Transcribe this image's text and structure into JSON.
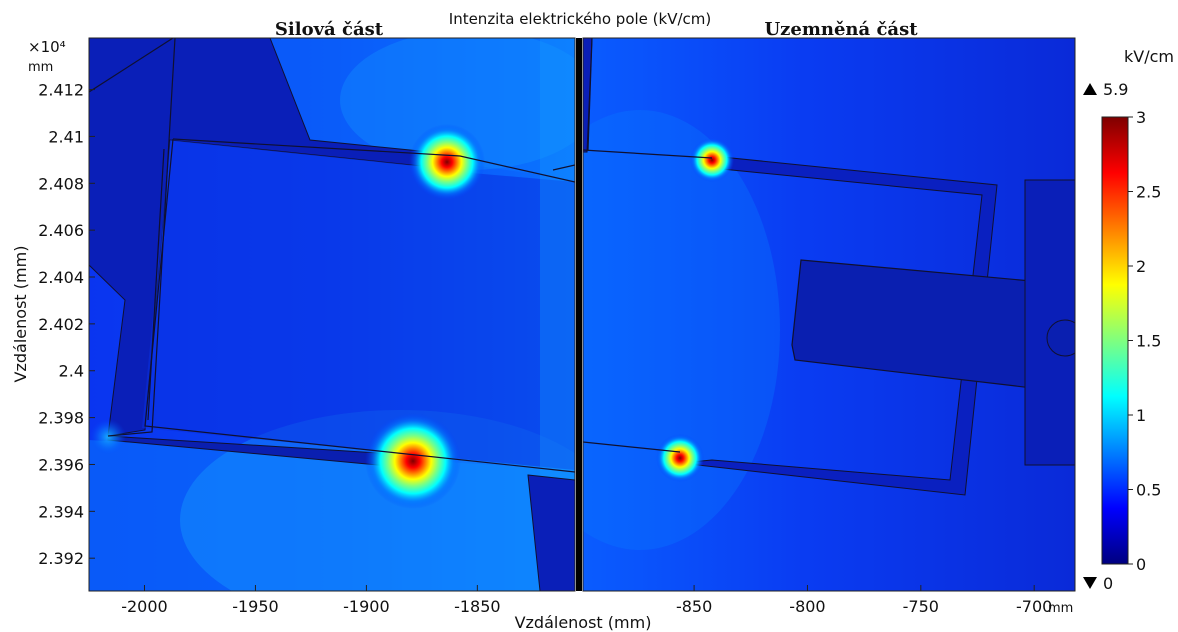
{
  "chart_data": {
    "type": "heatmap",
    "title": "Intenzita elektrického pole (kV/cm)",
    "xlabel": "Vzdálenost (mm)",
    "ylabel": "Vzdálenost (mm)",
    "x_unit": "mm",
    "y_unit": "mm",
    "y_multiplier": "×10⁴",
    "panels": [
      {
        "name": "Silová část",
        "xlim": [
          -2025,
          -1806
        ],
        "x_ticks": [
          -2000,
          -1950,
          -1900,
          -1850
        ]
      },
      {
        "name": "Uzemněná část",
        "xlim": [
          -899,
          -682
        ],
        "x_ticks": [
          -850,
          -800,
          -750,
          -700
        ]
      }
    ],
    "ylim": [
      2.3906,
      2.4142
    ],
    "y_ticks": [
      2.392,
      2.394,
      2.396,
      2.398,
      2.4,
      2.402,
      2.404,
      2.406,
      2.408,
      2.41,
      2.412
    ],
    "y_tick_labels": [
      "2.392",
      "2.394",
      "2.396",
      "2.398",
      "2.4",
      "2.402",
      "2.404",
      "2.406",
      "2.408",
      "2.41",
      "2.412"
    ],
    "hotspots": [
      {
        "panel": 0,
        "x": -1862,
        "y": 2.41,
        "value": 3
      },
      {
        "panel": 0,
        "x": -1876,
        "y": 2.3965,
        "value": 3
      },
      {
        "panel": 1,
        "x": -842,
        "y": 2.41,
        "value": 2.8
      },
      {
        "panel": 1,
        "x": -856,
        "y": 2.3966,
        "value": 2.6
      }
    ],
    "colorbar": {
      "unit": "kV/cm",
      "range": [
        0,
        3
      ],
      "ticks": [
        0,
        0.5,
        1,
        1.5,
        2,
        2.5,
        3
      ],
      "tick_labels": [
        "0",
        "0.5",
        "1",
        "1.5",
        "2",
        "2.5",
        "3"
      ],
      "max_label": "5.9",
      "min_label": "0",
      "max_value": 5.9,
      "min_value": 0,
      "colormap": [
        "#00007f",
        "#0000ff",
        "#007fff",
        "#00ffff",
        "#7fff7f",
        "#ffff00",
        "#ff7f00",
        "#ff0000",
        "#7f0000"
      ]
    },
    "grid": false
  }
}
